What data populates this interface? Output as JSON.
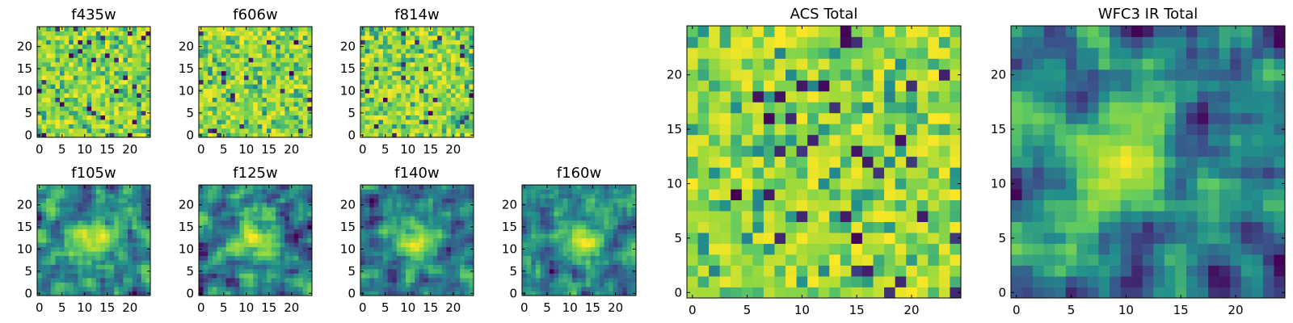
{
  "figure": {
    "palette": [
      "#440154",
      "#3b528b",
      "#21908c",
      "#5dc963",
      "#a0da39",
      "#fde725"
    ]
  },
  "chart_data": [
    {
      "type": "heatmap",
      "title": "f435w",
      "grid_size": 25,
      "xlim": [
        -0.5,
        24.5
      ],
      "ylim": [
        -0.5,
        24.5
      ],
      "xticks": [
        0,
        5,
        10,
        15,
        20
      ],
      "yticks": [
        0,
        5,
        10,
        15,
        20
      ],
      "noise_level": "high"
    },
    {
      "type": "heatmap",
      "title": "f606w",
      "grid_size": 25,
      "xlim": [
        -0.5,
        24.5
      ],
      "ylim": [
        -0.5,
        24.5
      ],
      "xticks": [
        0,
        5,
        10,
        15,
        20
      ],
      "yticks": [
        0,
        5,
        10,
        15,
        20
      ],
      "noise_level": "high"
    },
    {
      "type": "heatmap",
      "title": "f814w",
      "grid_size": 25,
      "xlim": [
        -0.5,
        24.5
      ],
      "ylim": [
        -0.5,
        24.5
      ],
      "xticks": [
        0,
        5,
        10,
        15,
        20
      ],
      "yticks": [
        0,
        5,
        10,
        15,
        20
      ],
      "noise_level": "high"
    },
    {
      "type": "heatmap",
      "title": "f105w",
      "grid_size": 25,
      "xlim": [
        -0.5,
        24.5
      ],
      "ylim": [
        -0.5,
        24.5
      ],
      "xticks": [
        0,
        5,
        10,
        15,
        20
      ],
      "yticks": [
        0,
        5,
        10,
        15,
        20
      ],
      "noise_level": "smooth",
      "bright_source_center": [
        12,
        12
      ]
    },
    {
      "type": "heatmap",
      "title": "f125w",
      "grid_size": 25,
      "xlim": [
        -0.5,
        24.5
      ],
      "ylim": [
        -0.5,
        24.5
      ],
      "xticks": [
        0,
        5,
        10,
        15,
        20
      ],
      "yticks": [
        0,
        5,
        10,
        15,
        20
      ],
      "noise_level": "smooth",
      "bright_source_center": [
        12,
        12
      ]
    },
    {
      "type": "heatmap",
      "title": "f140w",
      "grid_size": 25,
      "xlim": [
        -0.5,
        24.5
      ],
      "ylim": [
        -0.5,
        24.5
      ],
      "xticks": [
        0,
        5,
        10,
        15,
        20
      ],
      "yticks": [
        0,
        5,
        10,
        15,
        20
      ],
      "noise_level": "smooth",
      "bright_source_center": [
        12,
        12
      ]
    },
    {
      "type": "heatmap",
      "title": "f160w",
      "grid_size": 25,
      "xlim": [
        -0.5,
        24.5
      ],
      "ylim": [
        -0.5,
        24.5
      ],
      "xticks": [
        0,
        5,
        10,
        15,
        20
      ],
      "yticks": [
        0,
        5,
        10,
        15,
        20
      ],
      "noise_level": "smooth",
      "bright_source_center": [
        12,
        12
      ]
    },
    {
      "type": "heatmap",
      "title": "ACS Total",
      "grid_size": 25,
      "xlim": [
        -0.5,
        24.5
      ],
      "ylim": [
        -0.5,
        24.5
      ],
      "xticks": [
        0,
        5,
        10,
        15,
        20
      ],
      "yticks": [
        0,
        5,
        10,
        15,
        20
      ],
      "noise_level": "high"
    },
    {
      "type": "heatmap",
      "title": "WFC3 IR Total",
      "grid_size": 25,
      "xlim": [
        -0.5,
        24.5
      ],
      "ylim": [
        -0.5,
        24.5
      ],
      "xticks": [
        0,
        5,
        10,
        15,
        20
      ],
      "yticks": [
        0,
        5,
        10,
        15,
        20
      ],
      "noise_level": "smooth",
      "bright_source_center": [
        10,
        12
      ]
    }
  ]
}
